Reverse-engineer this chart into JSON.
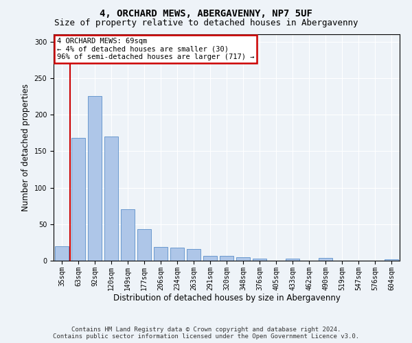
{
  "title": "4, ORCHARD MEWS, ABERGAVENNY, NP7 5UF",
  "subtitle": "Size of property relative to detached houses in Abergavenny",
  "xlabel": "Distribution of detached houses by size in Abergavenny",
  "ylabel": "Number of detached properties",
  "categories": [
    "35sqm",
    "63sqm",
    "92sqm",
    "120sqm",
    "149sqm",
    "177sqm",
    "206sqm",
    "234sqm",
    "263sqm",
    "291sqm",
    "320sqm",
    "348sqm",
    "376sqm",
    "405sqm",
    "433sqm",
    "462sqm",
    "490sqm",
    "519sqm",
    "547sqm",
    "576sqm",
    "604sqm"
  ],
  "values": [
    20,
    168,
    225,
    170,
    70,
    43,
    19,
    18,
    16,
    7,
    7,
    5,
    3,
    0,
    3,
    0,
    4,
    0,
    0,
    0,
    2
  ],
  "bar_color": "#aec6e8",
  "bar_edge_color": "#5b8fc9",
  "property_line_x": 0.5,
  "annotation_line1": "4 ORCHARD MEWS: 69sqm",
  "annotation_line2": "← 4% of detached houses are smaller (30)",
  "annotation_line3": "96% of semi-detached houses are larger (717) →",
  "annotation_box_color": "#ffffff",
  "annotation_box_edge": "#cc0000",
  "vline_color": "#cc0000",
  "ylim": [
    0,
    310
  ],
  "yticks": [
    0,
    50,
    100,
    150,
    200,
    250,
    300
  ],
  "footer1": "Contains HM Land Registry data © Crown copyright and database right 2024.",
  "footer2": "Contains public sector information licensed under the Open Government Licence v3.0.",
  "bg_color": "#eef3f8",
  "plot_bg_color": "#eef3f8",
  "grid_color": "#ffffff",
  "title_fontsize": 10,
  "subtitle_fontsize": 9,
  "axis_label_fontsize": 8.5,
  "tick_fontsize": 7,
  "footer_fontsize": 6.5,
  "annotation_fontsize": 7.5
}
